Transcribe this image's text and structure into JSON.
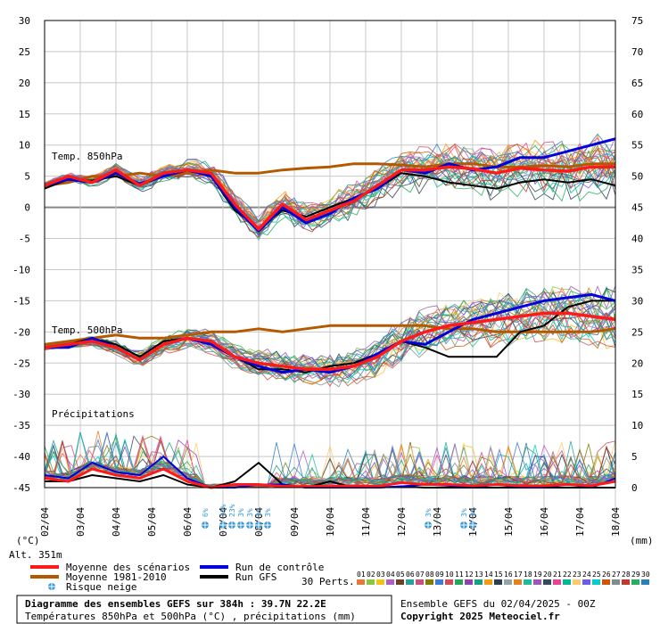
{
  "chart_data": {
    "type": "line",
    "title": "Diagramme des ensembles GEFS sur 384h : 39.7N 22.2E",
    "subtitle": "Températures 850hPa et 500hPa (°C) , précipitations (mm)",
    "left_axis": {
      "label": "(°C)",
      "ticks": [
        30,
        25,
        20,
        15,
        10,
        5,
        0,
        -5,
        -10,
        -15,
        -20,
        -25,
        -30,
        -35,
        -40,
        -45
      ],
      "range": [
        -45,
        30
      ]
    },
    "right_axis": {
      "label": "(mm)",
      "ticks": [
        75,
        70,
        65,
        60,
        55,
        50,
        45,
        40,
        35,
        30,
        25,
        20,
        15,
        10,
        5,
        0
      ],
      "range": [
        0,
        75
      ]
    },
    "x_ticks": [
      "02/04",
      "03/04",
      "04/04",
      "05/04",
      "06/04",
      "07/04",
      "08/04",
      "09/04",
      "10/04",
      "11/04",
      "12/04",
      "13/04",
      "14/04",
      "15/04",
      "16/04",
      "17/04",
      "18/04"
    ],
    "panel_labels": {
      "t850": "Temp. 850hPa",
      "t500": "Temp. 500hPa",
      "precip": "Précipitations"
    },
    "altitude": "Alt. 351m",
    "legend": {
      "mean": "Moyenne des scénarios",
      "climate": "Moyenne 1981-2010",
      "snow": "Risque neige",
      "control": "Run de contrôle",
      "gfs": "Run GFS",
      "perts_label": "30 Perts."
    },
    "perts": [
      "01",
      "02",
      "03",
      "04",
      "05",
      "06",
      "07",
      "08",
      "09",
      "10",
      "11",
      "12",
      "13",
      "14",
      "15",
      "16",
      "17",
      "18",
      "19",
      "20",
      "21",
      "22",
      "23",
      "24",
      "25",
      "26",
      "27",
      "28",
      "29",
      "30"
    ],
    "pert_colors": [
      "#e07b39",
      "#8cc63f",
      "#f0c419",
      "#b05fc8",
      "#6b4226",
      "#2aa198",
      "#c94f7c",
      "#7d7d00",
      "#3b7dd8",
      "#d24d57",
      "#26a65b",
      "#8e44ad",
      "#16a085",
      "#f39c12",
      "#2c3e50",
      "#95a5a6",
      "#e67e22",
      "#1abc9c",
      "#9b59b6",
      "#34495e",
      "#e84393",
      "#00b894",
      "#fdcb6e",
      "#6c5ce7",
      "#00cec9",
      "#d35400",
      "#7f8c8d",
      "#c0392b",
      "#27ae60",
      "#2980b9"
    ],
    "colors": {
      "mean": "#ff1a1a",
      "climate": "#b35900",
      "control": "#0000dd",
      "gfs": "#000000",
      "snow": "#3a9ad9"
    },
    "series": {
      "t850_mean": [
        3.5,
        5,
        4,
        6,
        3.5,
        5.5,
        6,
        5.5,
        0.5,
        -3.5,
        0.5,
        -2,
        -0.5,
        1,
        3.5,
        6,
        6,
        6.5,
        6.2,
        5.5,
        6.3,
        6,
        5.8,
        6.5,
        6.5
      ],
      "t850_climate": [
        3.5,
        4,
        5,
        5,
        5.5,
        5,
        5.5,
        6,
        5.5,
        5.5,
        6,
        6.3,
        6.5,
        7,
        7,
        6.8,
        6.5,
        7,
        7,
        6.5,
        6.5,
        6.7,
        6.5,
        7,
        7
      ],
      "t850_control": [
        3.5,
        4.5,
        4,
        5.5,
        3.8,
        5,
        6,
        5,
        0,
        -3.8,
        0,
        -2.5,
        -1,
        1.5,
        3,
        6,
        5.5,
        7,
        6,
        6.5,
        8,
        8,
        9,
        10,
        11
      ],
      "t850_gfs": [
        3,
        4.5,
        4.3,
        5,
        3.5,
        5,
        6,
        5,
        -0.5,
        -3.3,
        -0.5,
        -1.5,
        0,
        1.5,
        3,
        5.5,
        5,
        4,
        3.5,
        3,
        4,
        4.5,
        4,
        4.5,
        3.5
      ],
      "t500_mean": [
        -22.5,
        -22,
        -21.5,
        -22.5,
        -24.5,
        -22,
        -21,
        -21.5,
        -24,
        -25,
        -25.5,
        -26,
        -26,
        -25.5,
        -24,
        -21.5,
        -20,
        -19,
        -18.5,
        -18,
        -17.5,
        -17,
        -17,
        -17.5,
        -18
      ],
      "t500_climate": [
        -22,
        -21.5,
        -21,
        -20.5,
        -21,
        -21,
        -20.5,
        -20,
        -20,
        -19.5,
        -20,
        -19.5,
        -19,
        -19,
        -19,
        -19,
        -19,
        -19.5,
        -19.5,
        -20,
        -20,
        -20,
        -20,
        -20,
        -19.5
      ],
      "t500_control": [
        -22.5,
        -22.5,
        -21,
        -22.5,
        -24.5,
        -22,
        -21,
        -22,
        -24,
        -25.5,
        -26.5,
        -26,
        -26.5,
        -25.5,
        -23.5,
        -21.5,
        -22,
        -20,
        -18,
        -17,
        -16,
        -15,
        -14.5,
        -14,
        -15
      ],
      "t500_gfs": [
        -22.5,
        -22,
        -21,
        -22,
        -24,
        -21.5,
        -21,
        -22,
        -24,
        -26,
        -26,
        -26.5,
        -25.5,
        -25,
        -23.5,
        -21.5,
        -22.5,
        -24,
        -24,
        -24,
        -20,
        -19,
        -16,
        -15,
        -15
      ],
      "precip_mean": [
        1.5,
        1,
        3,
        2,
        1.5,
        3,
        1,
        0,
        0.5,
        0.5,
        0.2,
        0.2,
        0.2,
        0.3,
        0.2,
        0.8,
        0.5,
        0.5,
        0.3,
        0.5,
        0.3,
        0.3,
        0.5,
        0.3,
        1
      ],
      "precip_control": [
        2,
        1.5,
        4,
        2.5,
        2,
        5,
        1.5,
        0,
        0,
        0.5,
        0.5,
        0,
        0,
        0,
        0,
        0.2,
        0.5,
        0.3,
        0,
        0.5,
        0,
        0,
        0.5,
        0,
        1.5
      ],
      "precip_gfs": [
        1,
        1,
        2,
        1.5,
        1,
        2,
        0.5,
        0,
        1,
        4,
        0.5,
        0,
        1,
        0,
        0,
        0.2,
        0,
        0,
        0,
        0,
        0,
        0,
        0,
        0,
        0
      ]
    },
    "snow_risk": [
      {
        "x": "06/04 12h",
        "label": "6%"
      },
      {
        "x": "07/04 00h",
        "label": "10%"
      },
      {
        "x": "07/04 06h",
        "label": "23%"
      },
      {
        "x": "07/04 12h",
        "label": "3%"
      },
      {
        "x": "07/04 18h",
        "label": "3%"
      },
      {
        "x": "08/04 00h",
        "label": "3%"
      },
      {
        "x": "08/04 06h",
        "label": "3%"
      },
      {
        "x": "12/04 18h",
        "label": "3%"
      },
      {
        "x": "13/04 18h",
        "label": "3%"
      },
      {
        "x": "14/04 00h",
        "label": "3%"
      }
    ]
  },
  "footer": {
    "title": "Diagramme des ensembles GEFS sur 384h : 39.7N 22.2E",
    "subtitle": "Températures 850hPa et 500hPa (°C) , précipitations (mm)",
    "run_info": "Ensemble GEFS du 02/04/2025 - 00Z",
    "copyright": "Copyright 2025 Meteociel.fr"
  }
}
